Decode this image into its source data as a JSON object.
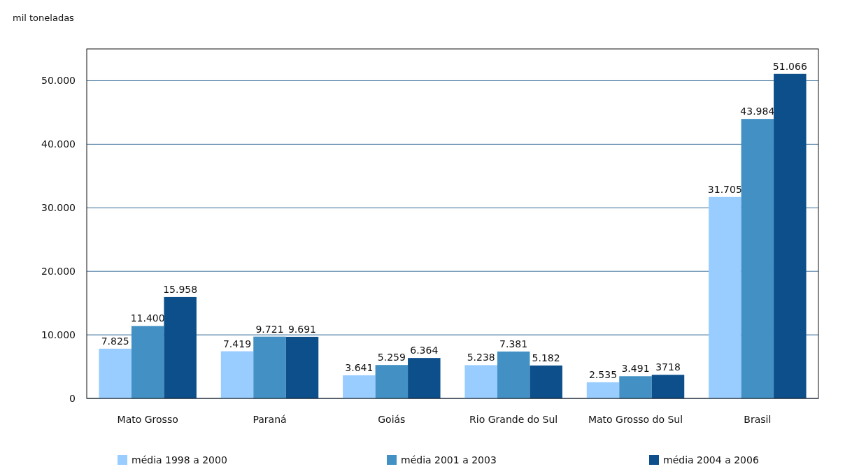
{
  "chart_data": {
    "type": "bar",
    "ylabel": "mil toneladas",
    "categories": [
      "Mato Grosso",
      "Paraná",
      "Goiás",
      "Rio Grande do Sul",
      "Mato Grosso do Sul",
      "Brasil"
    ],
    "series": [
      {
        "name": "média 1998 a 2000",
        "color": "#99ccff",
        "values": [
          7825,
          7419,
          3641,
          5238,
          2535,
          31705
        ],
        "value_labels": [
          "7.825",
          "7.419",
          "3.641",
          "5.238",
          "2.535",
          "31.705"
        ]
      },
      {
        "name": "média 2001 a 2003",
        "color": "#4391c4",
        "values": [
          11400,
          9721,
          5259,
          7381,
          3491,
          43984
        ],
        "value_labels": [
          "11.400",
          "9.721",
          "5.259",
          "7.381",
          "3.491",
          "43.984"
        ]
      },
      {
        "name": "média 2004 a 2006",
        "color": "#0d4f8b",
        "values": [
          15958,
          9691,
          6364,
          5182,
          3718,
          51066
        ],
        "value_labels": [
          "15.958",
          "9.691",
          "6.364",
          "5.182",
          "3718",
          "51.066"
        ]
      }
    ],
    "ylim": [
      0,
      55000
    ],
    "yticks": [
      {
        "value": 0,
        "label": "0"
      },
      {
        "value": 10000,
        "label": "10.000"
      },
      {
        "value": 20000,
        "label": "20.000"
      },
      {
        "value": 30000,
        "label": "30.000"
      },
      {
        "value": 40000,
        "label": "40.000"
      },
      {
        "value": 50000,
        "label": "50.000"
      }
    ],
    "grid": "y",
    "legend": "bottom"
  }
}
